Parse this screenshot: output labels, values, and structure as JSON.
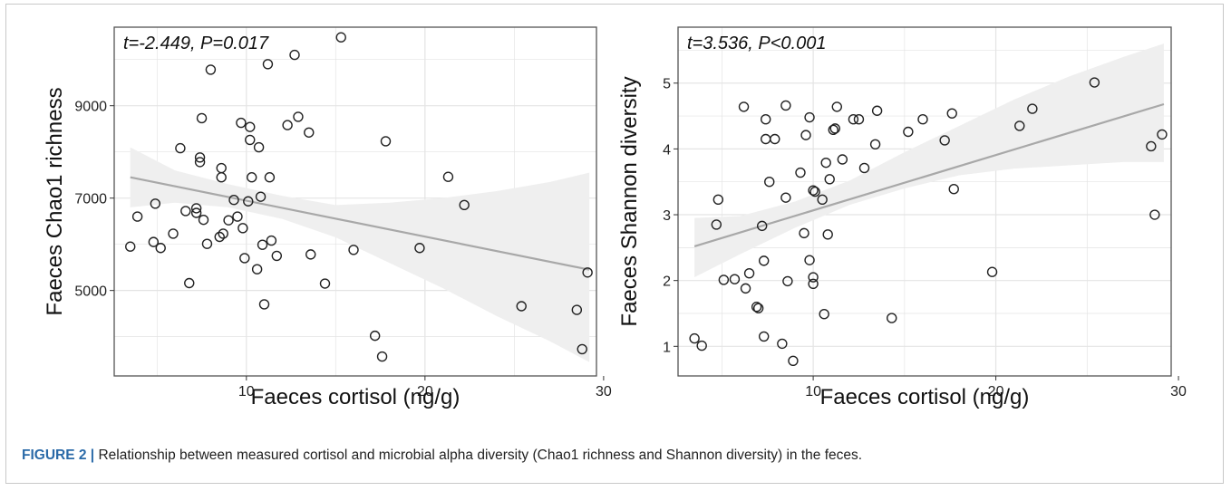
{
  "caption": {
    "label": "FIGURE 2 |",
    "text": " Relationship between measured cortisol and microbial alpha diversity (Chao1 richness and Shannon diversity) in the feces."
  },
  "colors": {
    "point": "#222222",
    "fit": "#a8a8a8",
    "band": "#efefef",
    "grid": "#e4e4e4",
    "panel_border": "#555555"
  },
  "chart_data": [
    {
      "type": "scatter",
      "annotation": "t=-2.449, P=0.017",
      "xlabel": "Faeces cortisol (ng/g)",
      "ylabel": "Faeces Chao1 richness",
      "xlim": [
        2.6,
        29.6
      ],
      "ylim": [
        3150,
        10700
      ],
      "xticks": [
        10,
        20,
        30
      ],
      "yticks": [
        5000,
        7000,
        9000
      ],
      "grid": true,
      "fit": {
        "x": [
          3.5,
          29.2
        ],
        "y": [
          7450,
          5450
        ]
      },
      "band": {
        "x": [
          3.5,
          6,
          9,
          12,
          15,
          18,
          21,
          24,
          27,
          29.2
        ],
        "upper": [
          8100,
          7600,
          7300,
          7050,
          6850,
          6900,
          7000,
          7150,
          7350,
          7550
        ],
        "lower": [
          6800,
          6900,
          6800,
          6550,
          6150,
          5600,
          5050,
          4450,
          3900,
          3450
        ]
      },
      "points": [
        {
          "x": 3.5,
          "y": 5950
        },
        {
          "x": 3.9,
          "y": 6600
        },
        {
          "x": 4.8,
          "y": 6050
        },
        {
          "x": 4.9,
          "y": 6880
        },
        {
          "x": 5.2,
          "y": 5920
        },
        {
          "x": 5.9,
          "y": 6230
        },
        {
          "x": 6.3,
          "y": 8080
        },
        {
          "x": 6.6,
          "y": 6720
        },
        {
          "x": 6.8,
          "y": 5160
        },
        {
          "x": 7.2,
          "y": 6780
        },
        {
          "x": 7.2,
          "y": 6680
        },
        {
          "x": 7.4,
          "y": 7880
        },
        {
          "x": 7.4,
          "y": 7780
        },
        {
          "x": 7.5,
          "y": 8730
        },
        {
          "x": 7.6,
          "y": 6530
        },
        {
          "x": 7.8,
          "y": 6010
        },
        {
          "x": 8.0,
          "y": 9780
        },
        {
          "x": 8.5,
          "y": 6160
        },
        {
          "x": 8.6,
          "y": 7650
        },
        {
          "x": 8.6,
          "y": 7450
        },
        {
          "x": 8.7,
          "y": 6230
        },
        {
          "x": 9.0,
          "y": 6520
        },
        {
          "x": 9.3,
          "y": 6960
        },
        {
          "x": 9.5,
          "y": 6600
        },
        {
          "x": 9.7,
          "y": 8630
        },
        {
          "x": 9.8,
          "y": 6350
        },
        {
          "x": 9.9,
          "y": 5700
        },
        {
          "x": 10.1,
          "y": 6930
        },
        {
          "x": 10.2,
          "y": 8540
        },
        {
          "x": 10.2,
          "y": 8260
        },
        {
          "x": 10.3,
          "y": 7450
        },
        {
          "x": 10.6,
          "y": 5460
        },
        {
          "x": 10.7,
          "y": 8100
        },
        {
          "x": 10.8,
          "y": 7030
        },
        {
          "x": 10.9,
          "y": 5990
        },
        {
          "x": 11.0,
          "y": 4700
        },
        {
          "x": 11.2,
          "y": 9900
        },
        {
          "x": 11.3,
          "y": 7450
        },
        {
          "x": 11.4,
          "y": 6080
        },
        {
          "x": 11.7,
          "y": 5750
        },
        {
          "x": 12.3,
          "y": 8580
        },
        {
          "x": 12.7,
          "y": 10100
        },
        {
          "x": 12.9,
          "y": 8760
        },
        {
          "x": 13.5,
          "y": 8420
        },
        {
          "x": 13.6,
          "y": 5780
        },
        {
          "x": 14.4,
          "y": 5150
        },
        {
          "x": 15.3,
          "y": 10480
        },
        {
          "x": 16.0,
          "y": 5880
        },
        {
          "x": 17.2,
          "y": 4020
        },
        {
          "x": 17.6,
          "y": 3570
        },
        {
          "x": 17.8,
          "y": 8230
        },
        {
          "x": 19.7,
          "y": 5920
        },
        {
          "x": 21.3,
          "y": 7460
        },
        {
          "x": 22.2,
          "y": 6850
        },
        {
          "x": 25.4,
          "y": 4660
        },
        {
          "x": 28.5,
          "y": 4580
        },
        {
          "x": 28.8,
          "y": 3730
        },
        {
          "x": 29.1,
          "y": 5390
        }
      ]
    },
    {
      "type": "scatter",
      "annotation": "t=3.536, P<0.001",
      "xlabel": "Faeces cortisol (ng/g)",
      "ylabel": "Faeces Shannon diversity",
      "xlim": [
        2.6,
        29.6
      ],
      "ylim": [
        0.55,
        5.85
      ],
      "xticks": [
        10,
        20,
        30
      ],
      "yticks": [
        1,
        2,
        3,
        4,
        5
      ],
      "grid": true,
      "fit": {
        "x": [
          3.5,
          29.2
        ],
        "y": [
          2.52,
          4.68
        ]
      },
      "band": {
        "x": [
          3.5,
          6,
          9,
          12,
          15,
          18,
          21,
          24,
          27,
          29.2
        ],
        "upper": [
          2.95,
          2.98,
          3.2,
          3.52,
          3.95,
          4.35,
          4.75,
          5.1,
          5.4,
          5.6
        ],
        "lower": [
          2.05,
          2.4,
          2.8,
          3.15,
          3.4,
          3.6,
          3.7,
          3.75,
          3.8,
          3.8
        ]
      },
      "points": [
        {
          "x": 3.5,
          "y": 1.12
        },
        {
          "x": 3.9,
          "y": 1.01
        },
        {
          "x": 4.7,
          "y": 2.85
        },
        {
          "x": 4.8,
          "y": 3.23
        },
        {
          "x": 5.1,
          "y": 2.01
        },
        {
          "x": 5.7,
          "y": 2.02
        },
        {
          "x": 6.2,
          "y": 4.64
        },
        {
          "x": 6.3,
          "y": 1.88
        },
        {
          "x": 6.5,
          "y": 2.11
        },
        {
          "x": 6.9,
          "y": 1.6
        },
        {
          "x": 7.0,
          "y": 1.58
        },
        {
          "x": 7.2,
          "y": 2.83
        },
        {
          "x": 7.3,
          "y": 1.15
        },
        {
          "x": 7.3,
          "y": 2.3
        },
        {
          "x": 7.4,
          "y": 4.45
        },
        {
          "x": 7.4,
          "y": 4.15
        },
        {
          "x": 7.6,
          "y": 3.5
        },
        {
          "x": 7.9,
          "y": 4.15
        },
        {
          "x": 8.3,
          "y": 1.04
        },
        {
          "x": 8.5,
          "y": 4.66
        },
        {
          "x": 8.5,
          "y": 3.26
        },
        {
          "x": 8.6,
          "y": 1.99
        },
        {
          "x": 8.9,
          "y": 0.78
        },
        {
          "x": 9.3,
          "y": 3.64
        },
        {
          "x": 9.5,
          "y": 2.72
        },
        {
          "x": 9.6,
          "y": 4.21
        },
        {
          "x": 9.8,
          "y": 4.48
        },
        {
          "x": 9.8,
          "y": 2.31
        },
        {
          "x": 10.0,
          "y": 3.37
        },
        {
          "x": 10.0,
          "y": 2.05
        },
        {
          "x": 10.0,
          "y": 1.95
        },
        {
          "x": 10.1,
          "y": 3.35
        },
        {
          "x": 10.5,
          "y": 3.23
        },
        {
          "x": 10.6,
          "y": 1.49
        },
        {
          "x": 10.7,
          "y": 3.79
        },
        {
          "x": 10.8,
          "y": 2.7
        },
        {
          "x": 10.9,
          "y": 3.54
        },
        {
          "x": 11.1,
          "y": 4.29
        },
        {
          "x": 11.2,
          "y": 4.31
        },
        {
          "x": 11.3,
          "y": 4.64
        },
        {
          "x": 11.6,
          "y": 3.84
        },
        {
          "x": 12.2,
          "y": 4.45
        },
        {
          "x": 12.5,
          "y": 4.45
        },
        {
          "x": 12.8,
          "y": 3.71
        },
        {
          "x": 13.4,
          "y": 4.07
        },
        {
          "x": 13.5,
          "y": 4.58
        },
        {
          "x": 14.3,
          "y": 1.43
        },
        {
          "x": 15.2,
          "y": 4.26
        },
        {
          "x": 16.0,
          "y": 4.45
        },
        {
          "x": 17.2,
          "y": 4.13
        },
        {
          "x": 17.6,
          "y": 4.54
        },
        {
          "x": 17.7,
          "y": 3.39
        },
        {
          "x": 19.8,
          "y": 2.13
        },
        {
          "x": 21.3,
          "y": 4.35
        },
        {
          "x": 22.0,
          "y": 4.61
        },
        {
          "x": 25.4,
          "y": 5.01
        },
        {
          "x": 28.5,
          "y": 4.04
        },
        {
          "x": 28.7,
          "y": 3.0
        },
        {
          "x": 29.1,
          "y": 4.22
        }
      ]
    }
  ]
}
